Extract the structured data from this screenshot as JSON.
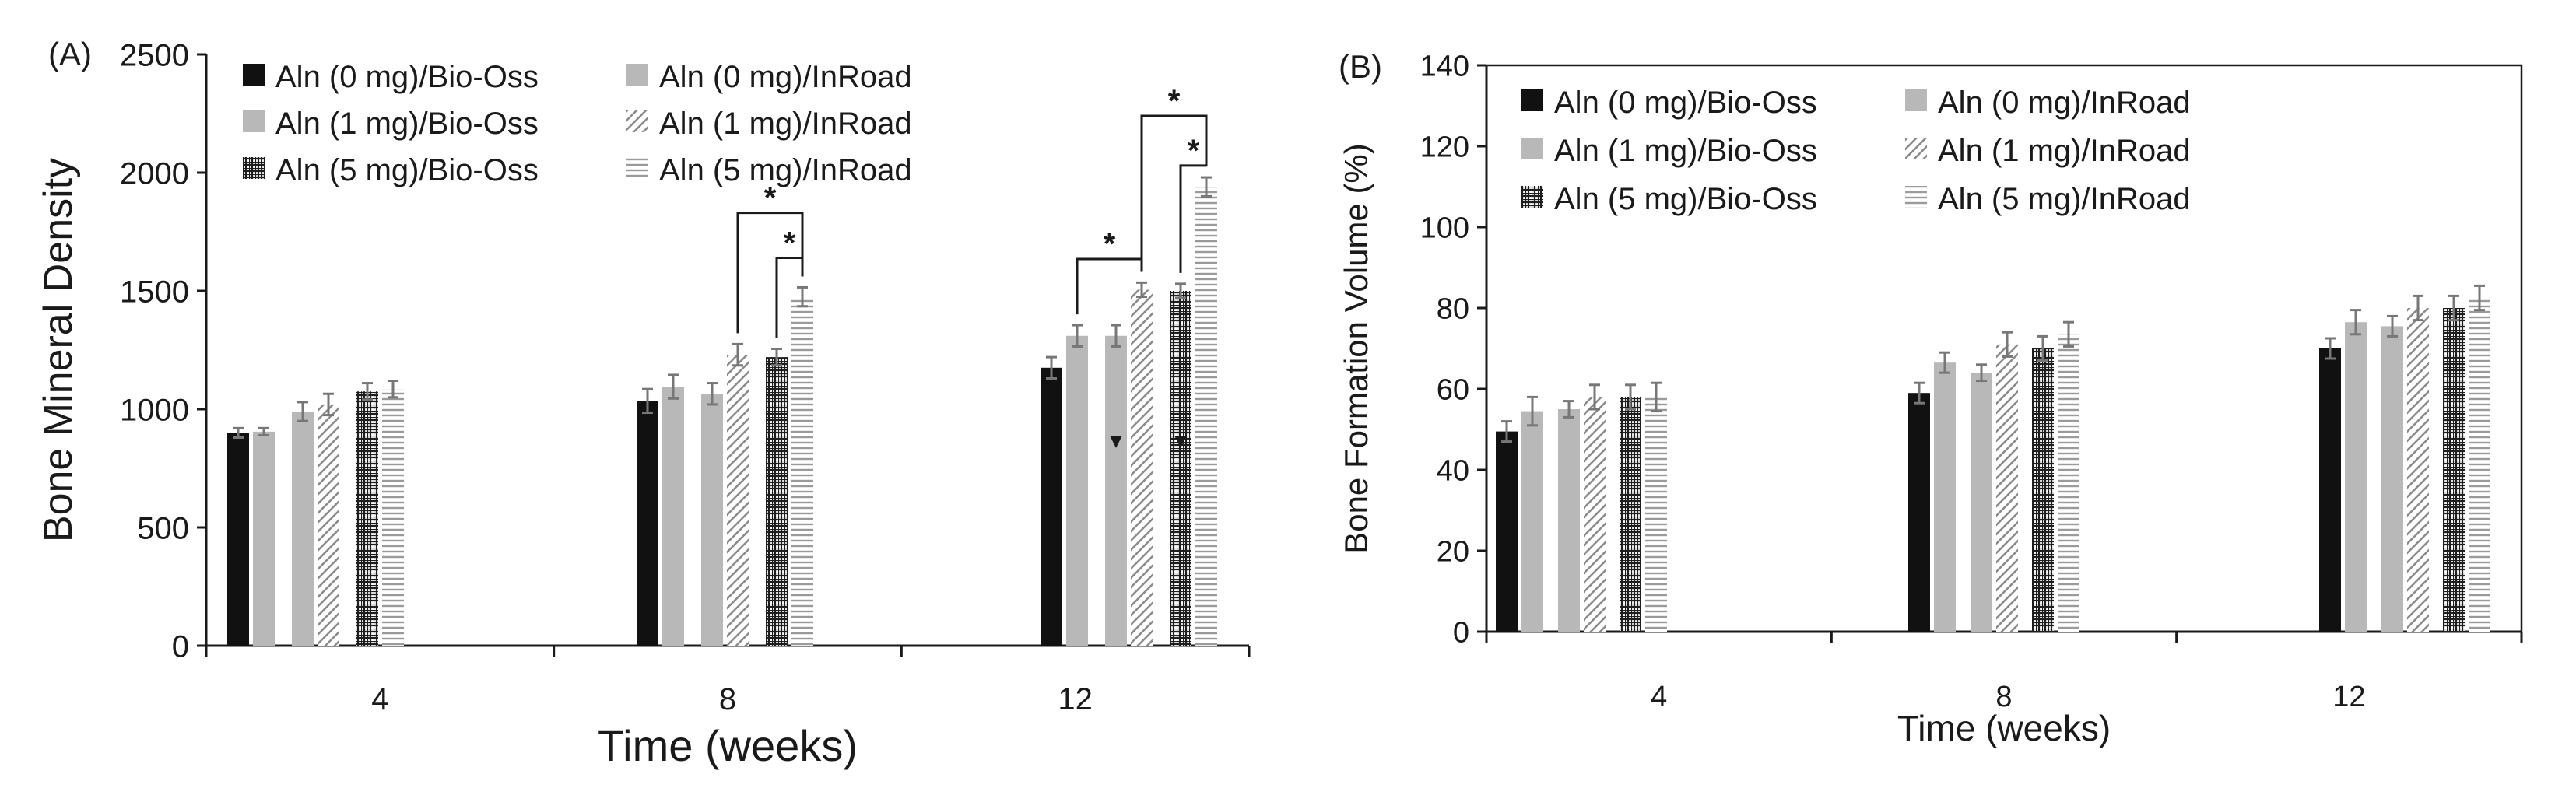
{
  "figure": {
    "colors": {
      "black": "#111111",
      "gray": "#b8b8b8",
      "pattern_ink": "#222222",
      "error_bar": "#777777"
    }
  },
  "chart_data": [
    {
      "panel": "(A)",
      "type": "bar",
      "title": "",
      "xlabel": "Time (weeks)",
      "ylabel": "Bone Mineral Density",
      "ylim": [
        0,
        2500
      ],
      "yticks": [
        "0",
        "500",
        "1000",
        "1500",
        "2000",
        "2500"
      ],
      "categories": [
        "4",
        "8",
        "12"
      ],
      "legend_position": "top-left, inside plot, three rows of two",
      "series": [
        {
          "name": "Aln (0 mg)/Bio-Oss",
          "fill": "black",
          "values": [
            900,
            1035,
            1175
          ],
          "errors": [
            20,
            50,
            45
          ]
        },
        {
          "name": "Aln (0 mg)/InRoad",
          "fill": "gray",
          "values": [
            905,
            1095,
            1310
          ],
          "errors": [
            15,
            50,
            45
          ]
        },
        {
          "name": "Aln (1 mg)/Bio-Oss",
          "fill": "gray",
          "values": [
            990,
            1065,
            1310
          ],
          "errors": [
            40,
            45,
            45
          ]
        },
        {
          "name": "Aln (1 mg)/InRoad",
          "fill": "diagonal",
          "values": [
            1020,
            1230,
            1505
          ],
          "errors": [
            45,
            45,
            30
          ]
        },
        {
          "name": "Aln (5 mg)/Bio-Oss",
          "fill": "grid",
          "values": [
            1075,
            1220,
            1500
          ],
          "errors": [
            35,
            35,
            30
          ]
        },
        {
          "name": "Aln (5 mg)/InRoad",
          "fill": "horizontal",
          "values": [
            1085,
            1475,
            1940
          ],
          "errors": [
            35,
            40,
            40
          ]
        }
      ],
      "significance": [
        {
          "group": "8",
          "from_series": 3,
          "to_series": 5,
          "label": "*",
          "level": 1830
        },
        {
          "group": "8",
          "from_series": 4,
          "to_series": 5,
          "label": "*",
          "level": 1640
        },
        {
          "group": "12",
          "from_series": 1,
          "to_series": 3,
          "label": "*",
          "level": 1635
        },
        {
          "group": "12",
          "from_series": 3,
          "to_series": 5,
          "label": "*",
          "level": 2240
        },
        {
          "group": "12",
          "from_series": 4,
          "to_series": 5,
          "label": "*",
          "level": 2030
        }
      ],
      "markers": [
        {
          "group": "12",
          "series": 2,
          "symbol": "▼",
          "value": 870
        },
        {
          "group": "12",
          "series": 4,
          "symbol": "▼",
          "value": 870
        }
      ]
    },
    {
      "panel": "(B)",
      "type": "bar",
      "title": "",
      "xlabel": "Time (weeks)",
      "ylabel": "Bone Formation Volume (%)",
      "ylim": [
        0,
        140
      ],
      "yticks": [
        "0",
        "20",
        "40",
        "60",
        "80",
        "100",
        "120",
        "140"
      ],
      "categories": [
        "4",
        "8",
        "12"
      ],
      "legend_position": "top-left, inside plot, three rows of two",
      "series": [
        {
          "name": "Aln (0 mg)/Bio-Oss",
          "fill": "black",
          "values": [
            49.5,
            59,
            70
          ],
          "errors": [
            2.5,
            2.5,
            2.5
          ]
        },
        {
          "name": "Aln (0 mg)/InRoad",
          "fill": "gray",
          "values": [
            54.5,
            66.5,
            76.5
          ],
          "errors": [
            3.5,
            2.5,
            3
          ]
        },
        {
          "name": "Aln (1 mg)/Bio-Oss",
          "fill": "gray",
          "values": [
            55,
            64,
            75.5
          ],
          "errors": [
            2,
            2,
            2.5
          ]
        },
        {
          "name": "Aln (1 mg)/InRoad",
          "fill": "diagonal",
          "values": [
            58,
            71,
            80
          ],
          "errors": [
            3,
            3,
            3
          ]
        },
        {
          "name": "Aln (5 mg)/Bio-Oss",
          "fill": "grid",
          "values": [
            58,
            70,
            80
          ],
          "errors": [
            3,
            3,
            3
          ]
        },
        {
          "name": "Aln (5 mg)/InRoad",
          "fill": "horizontal",
          "values": [
            58,
            73.5,
            82.5
          ],
          "errors": [
            3.5,
            3,
            3
          ]
        }
      ],
      "significance": [],
      "markers": []
    }
  ]
}
